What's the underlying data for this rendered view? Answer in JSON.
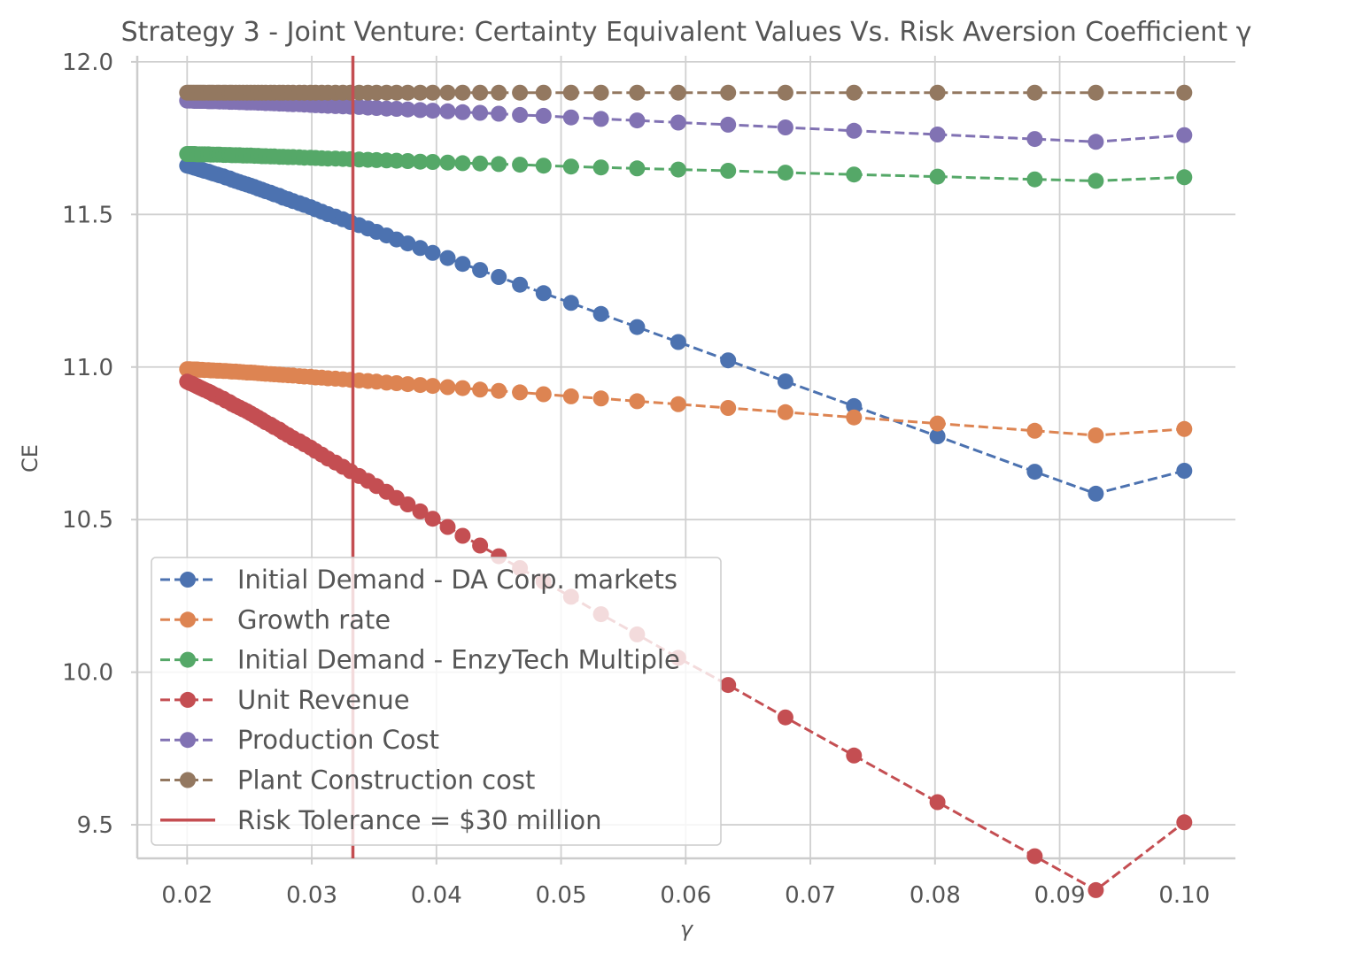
{
  "chart_data": {
    "type": "line",
    "title": "Strategy 3 - Joint Venture: Certainty Equivalent Values Vs. Risk Aversion Coefficient γ",
    "xlabel": "γ",
    "ylabel": "CE",
    "xlim": [
      0.016,
      0.1041
    ],
    "ylim": [
      9.39,
      12.02
    ],
    "x_ticks": [
      0.02,
      0.03,
      0.04,
      0.05,
      0.06,
      0.07,
      0.08,
      0.09,
      0.1
    ],
    "x_tick_labels": [
      "0.02",
      "0.03",
      "0.04",
      "0.05",
      "0.06",
      "0.07",
      "0.08",
      "0.09",
      "0.10"
    ],
    "y_ticks": [
      9.5,
      10.0,
      10.5,
      11.0,
      11.5,
      12.0
    ],
    "y_tick_labels": [
      "9.5",
      "10.0",
      "10.5",
      "11.0",
      "11.5",
      "12.0"
    ],
    "grid": true,
    "legend_position": "lower-left",
    "x": [
      0.02,
      0.0202,
      0.0204,
      0.0206,
      0.0208,
      0.021,
      0.0212,
      0.0214,
      0.0217,
      0.0219,
      0.0221,
      0.0224,
      0.0226,
      0.0229,
      0.0231,
      0.0234,
      0.0236,
      0.0239,
      0.0242,
      0.0245,
      0.0248,
      0.0251,
      0.0254,
      0.0257,
      0.026,
      0.0263,
      0.0267,
      0.027,
      0.0274,
      0.0277,
      0.0281,
      0.0285,
      0.029,
      0.0294,
      0.0299,
      0.0303,
      0.0308,
      0.0313,
      0.0319,
      0.0325,
      0.0331,
      0.0338,
      0.0345,
      0.0352,
      0.036,
      0.0368,
      0.0377,
      0.0387,
      0.0397,
      0.0409,
      0.0421,
      0.0435,
      0.045,
      0.0467,
      0.0486,
      0.0508,
      0.0532,
      0.0561,
      0.0594,
      0.0634,
      0.068,
      0.0735,
      0.0802,
      0.088,
      0.0929,
      0.1
    ],
    "series": [
      {
        "name": "Initial Demand - DA Corp. markets",
        "color": "#4c72b0",
        "marker": "circle",
        "linestyle": "dashed",
        "values": [
          11.66,
          11.658,
          11.656,
          11.653,
          11.651,
          11.648,
          11.646,
          11.643,
          11.64,
          11.637,
          11.634,
          11.631,
          11.628,
          11.625,
          11.621,
          11.618,
          11.614,
          11.61,
          11.606,
          11.602,
          11.598,
          11.594,
          11.59,
          11.585,
          11.581,
          11.576,
          11.571,
          11.566,
          11.561,
          11.555,
          11.55,
          11.544,
          11.537,
          11.531,
          11.524,
          11.517,
          11.509,
          11.501,
          11.493,
          11.484,
          11.475,
          11.465,
          11.454,
          11.443,
          11.431,
          11.418,
          11.405,
          11.39,
          11.374,
          11.357,
          11.338,
          11.318,
          11.295,
          11.27,
          11.242,
          11.21,
          11.174,
          11.131,
          11.082,
          11.022,
          10.953,
          10.872,
          10.773,
          10.657,
          10.585,
          10.66
        ]
      },
      {
        "name": "Growth rate",
        "color": "#dd8452",
        "marker": "circle",
        "linestyle": "dashed",
        "values": [
          10.993,
          10.993,
          10.992,
          10.992,
          10.992,
          10.991,
          10.991,
          10.99,
          10.99,
          10.989,
          10.989,
          10.988,
          10.988,
          10.987,
          10.987,
          10.986,
          10.985,
          10.985,
          10.984,
          10.983,
          10.982,
          10.982,
          10.981,
          10.98,
          10.979,
          10.978,
          10.977,
          10.976,
          10.975,
          10.974,
          10.973,
          10.972,
          10.97,
          10.969,
          10.968,
          10.966,
          10.965,
          10.963,
          10.962,
          10.96,
          10.958,
          10.956,
          10.954,
          10.952,
          10.949,
          10.947,
          10.944,
          10.941,
          10.938,
          10.934,
          10.931,
          10.926,
          10.922,
          10.917,
          10.911,
          10.904,
          10.897,
          10.888,
          10.878,
          10.866,
          10.852,
          10.835,
          10.815,
          10.791,
          10.776,
          10.797
        ]
      },
      {
        "name": "Initial Demand - EnzyTech Multiple",
        "color": "#55a868",
        "marker": "circle",
        "linestyle": "dashed",
        "values": [
          11.698,
          11.698,
          11.698,
          11.698,
          11.697,
          11.697,
          11.697,
          11.697,
          11.697,
          11.696,
          11.696,
          11.696,
          11.696,
          11.695,
          11.695,
          11.695,
          11.694,
          11.694,
          11.694,
          11.693,
          11.693,
          11.693,
          11.692,
          11.692,
          11.691,
          11.691,
          11.69,
          11.69,
          11.689,
          11.689,
          11.688,
          11.688,
          11.687,
          11.686,
          11.686,
          11.685,
          11.684,
          11.683,
          11.683,
          11.682,
          11.681,
          11.68,
          11.679,
          11.678,
          11.677,
          11.676,
          11.675,
          11.673,
          11.672,
          11.67,
          11.668,
          11.667,
          11.665,
          11.663,
          11.66,
          11.657,
          11.654,
          11.651,
          11.647,
          11.643,
          11.637,
          11.631,
          11.624,
          11.615,
          11.61,
          11.622
        ]
      },
      {
        "name": "Unit Revenue",
        "color": "#c44e52",
        "marker": "circle",
        "linestyle": "dashed",
        "values": [
          10.952,
          10.948,
          10.945,
          10.941,
          10.937,
          10.933,
          10.929,
          10.925,
          10.92,
          10.916,
          10.911,
          10.906,
          10.901,
          10.896,
          10.89,
          10.885,
          10.879,
          10.873,
          10.867,
          10.861,
          10.855,
          10.848,
          10.841,
          10.834,
          10.827,
          10.819,
          10.811,
          10.803,
          10.795,
          10.786,
          10.777,
          10.767,
          10.757,
          10.747,
          10.736,
          10.725,
          10.713,
          10.7,
          10.687,
          10.673,
          10.659,
          10.643,
          10.627,
          10.61,
          10.591,
          10.571,
          10.55,
          10.527,
          10.503,
          10.476,
          10.447,
          10.415,
          10.38,
          10.341,
          10.297,
          10.247,
          10.19,
          10.124,
          10.047,
          9.958,
          9.852,
          9.727,
          9.574,
          9.397,
          9.286,
          9.508
        ]
      },
      {
        "name": "Production Cost",
        "color": "#8172b3",
        "marker": "circle",
        "linestyle": "dashed",
        "values": [
          11.873,
          11.873,
          11.873,
          11.872,
          11.872,
          11.872,
          11.872,
          11.872,
          11.871,
          11.871,
          11.871,
          11.871,
          11.87,
          11.87,
          11.87,
          11.869,
          11.869,
          11.869,
          11.868,
          11.868,
          11.867,
          11.867,
          11.867,
          11.866,
          11.866,
          11.865,
          11.865,
          11.864,
          11.863,
          11.863,
          11.862,
          11.861,
          11.861,
          11.86,
          11.859,
          11.858,
          11.857,
          11.856,
          11.855,
          11.854,
          11.853,
          11.852,
          11.85,
          11.849,
          11.847,
          11.846,
          11.844,
          11.842,
          11.84,
          11.838,
          11.835,
          11.833,
          11.83,
          11.826,
          11.823,
          11.818,
          11.813,
          11.808,
          11.801,
          11.794,
          11.785,
          11.774,
          11.762,
          11.747,
          11.738,
          11.76
        ]
      },
      {
        "name": "Plant Construction cost",
        "color": "#937860",
        "marker": "circle",
        "linestyle": "dashed",
        "values": [
          11.899,
          11.899,
          11.899,
          11.899,
          11.899,
          11.899,
          11.899,
          11.899,
          11.899,
          11.899,
          11.899,
          11.899,
          11.899,
          11.899,
          11.899,
          11.899,
          11.899,
          11.899,
          11.899,
          11.899,
          11.899,
          11.899,
          11.899,
          11.899,
          11.899,
          11.899,
          11.899,
          11.899,
          11.899,
          11.899,
          11.899,
          11.899,
          11.899,
          11.899,
          11.899,
          11.899,
          11.899,
          11.899,
          11.899,
          11.899,
          11.899,
          11.899,
          11.899,
          11.899,
          11.899,
          11.899,
          11.899,
          11.899,
          11.899,
          11.899,
          11.899,
          11.899,
          11.899,
          11.899,
          11.899,
          11.899,
          11.899,
          11.899,
          11.899,
          11.899,
          11.899,
          11.899,
          11.899,
          11.899,
          11.899,
          11.899
        ]
      }
    ],
    "vline": {
      "name": "Risk Tolerance = $30 million",
      "x": 0.0333,
      "color": "#c44e52"
    }
  }
}
